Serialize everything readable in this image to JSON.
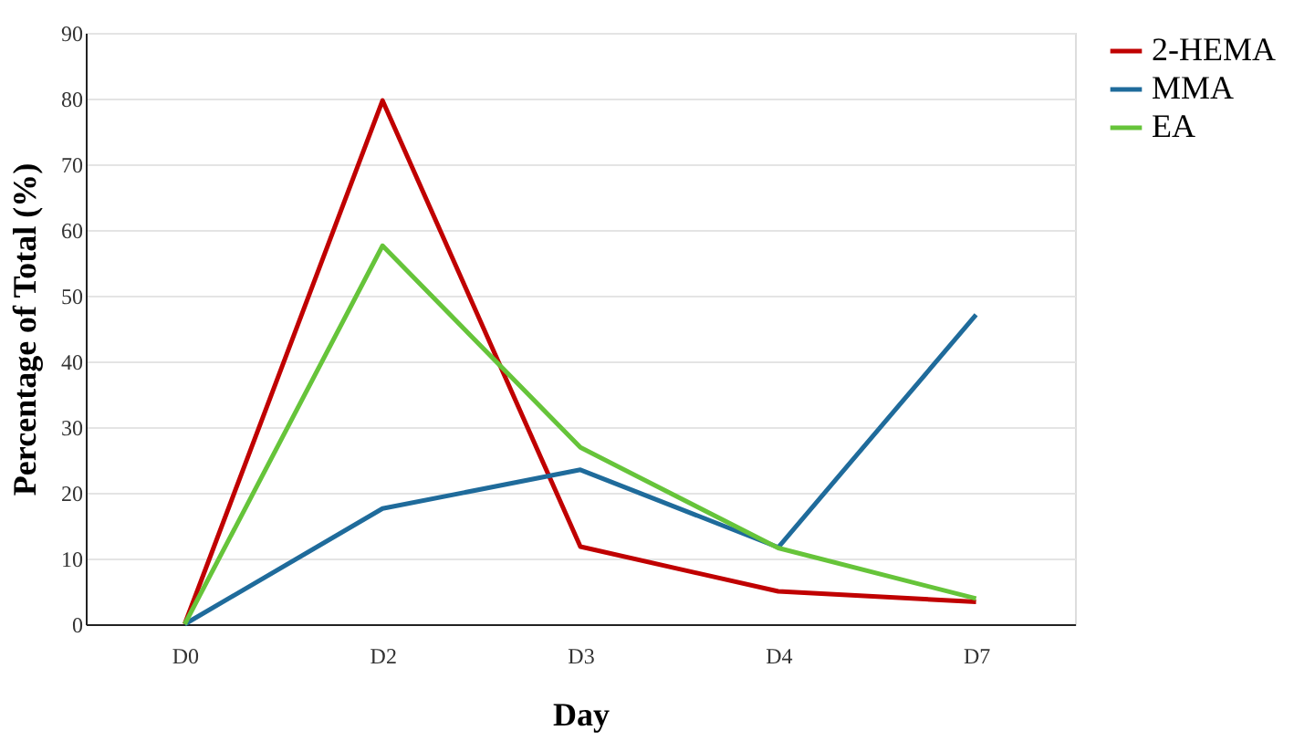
{
  "chart_data": {
    "type": "line",
    "xlabel": "Day",
    "ylabel": "Percentage of Total (%)",
    "categories": [
      "D0",
      "D2",
      "D3",
      "D4",
      "D7"
    ],
    "series": [
      {
        "name": "2-HEMA",
        "color": "#c00000",
        "values": [
          0,
          79.7,
          11.8,
          5.0,
          3.4
        ]
      },
      {
        "name": "MMA",
        "color": "#1f6b9b",
        "values": [
          0,
          17.6,
          23.5,
          11.7,
          47.1
        ]
      },
      {
        "name": "EA",
        "color": "#66c43a",
        "values": [
          0,
          57.6,
          26.9,
          11.6,
          3.9
        ]
      }
    ],
    "ylim": [
      0,
      90
    ],
    "yticks": [
      0,
      10,
      20,
      30,
      40,
      50,
      60,
      70,
      80,
      90
    ],
    "grid": "y",
    "legend": "right",
    "marker": "none",
    "line_style": "solid"
  }
}
